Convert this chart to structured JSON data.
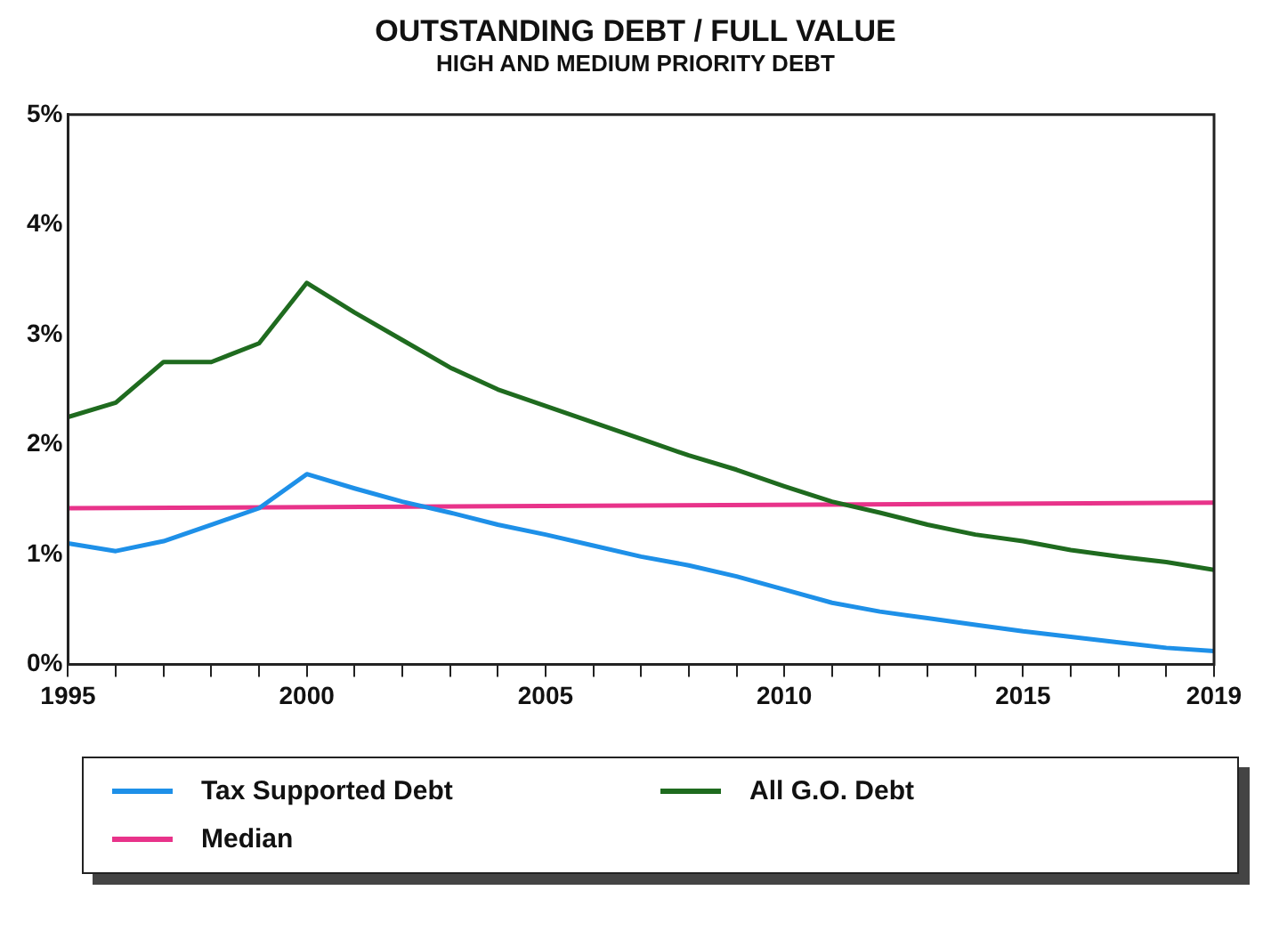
{
  "chart_data": {
    "type": "line",
    "title": "OUTSTANDING DEBT / FULL VALUE",
    "subtitle": "HIGH AND MEDIUM PRIORITY DEBT",
    "x": [
      1995,
      1996,
      1997,
      1998,
      1999,
      2000,
      2001,
      2002,
      2003,
      2004,
      2005,
      2006,
      2007,
      2008,
      2009,
      2010,
      2011,
      2012,
      2013,
      2014,
      2015,
      2016,
      2017,
      2018,
      2019
    ],
    "series": [
      {
        "name": "Tax Supported Debt",
        "color": "#1e90e8",
        "values": [
          1.1,
          1.03,
          1.12,
          1.27,
          1.42,
          1.73,
          1.6,
          1.48,
          1.38,
          1.27,
          1.18,
          1.08,
          0.98,
          0.9,
          0.8,
          0.68,
          0.56,
          0.48,
          0.42,
          0.36,
          0.3,
          0.25,
          0.2,
          0.15,
          0.12
        ]
      },
      {
        "name": "All G.O. Debt",
        "color": "#1f6b1f",
        "values": [
          2.25,
          2.38,
          2.75,
          2.75,
          2.92,
          3.47,
          3.2,
          2.95,
          2.7,
          2.5,
          2.35,
          2.2,
          2.05,
          1.9,
          1.77,
          1.62,
          1.48,
          1.38,
          1.27,
          1.18,
          1.12,
          1.04,
          0.98,
          0.93,
          0.86
        ]
      },
      {
        "name": "Median",
        "color": "#e8338a",
        "x": [
          1995,
          2019
        ],
        "values": [
          1.42,
          1.47
        ]
      }
    ],
    "xlim": [
      1995,
      2019
    ],
    "xticks": [
      1995,
      {
        "value": 1996,
        "label": null
      },
      {
        "value": 1997,
        "label": null
      },
      {
        "value": 1998,
        "label": null
      },
      {
        "value": 1999,
        "label": null
      },
      2000,
      {
        "value": 2001,
        "label": null
      },
      {
        "value": 2002,
        "label": null
      },
      {
        "value": 2003,
        "label": null
      },
      {
        "value": 2004,
        "label": null
      },
      2005,
      {
        "value": 2006,
        "label": null
      },
      {
        "value": 2007,
        "label": null
      },
      {
        "value": 2008,
        "label": null
      },
      {
        "value": 2009,
        "label": null
      },
      2010,
      {
        "value": 2011,
        "label": null
      },
      {
        "value": 2012,
        "label": null
      },
      {
        "value": 2013,
        "label": null
      },
      {
        "value": 2014,
        "label": null
      },
      2015,
      {
        "value": 2016,
        "label": null
      },
      {
        "value": 2017,
        "label": null
      },
      {
        "value": 2018,
        "label": null
      },
      2019
    ],
    "ylim": [
      0,
      5
    ],
    "yticks": [
      {
        "value": 0,
        "label": "0%"
      },
      {
        "value": 1,
        "label": "1%"
      },
      {
        "value": 2,
        "label": "2%"
      },
      {
        "value": 3,
        "label": "3%"
      },
      {
        "value": 4,
        "label": "4%"
      },
      {
        "value": 5,
        "label": "5%"
      }
    ],
    "grid": false,
    "legend": "bottom",
    "marker": "none",
    "line_style": "solid"
  }
}
